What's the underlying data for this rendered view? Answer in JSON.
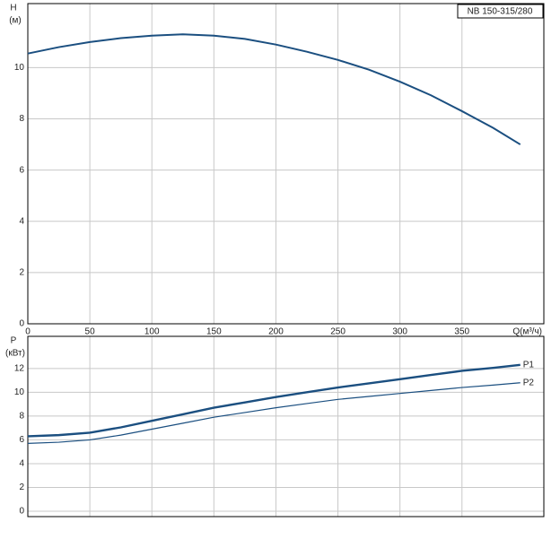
{
  "chart_data": [
    {
      "type": "line",
      "title": "NB 150-315/280",
      "ylabel": "H",
      "yunit": "(м)",
      "xlabel": "Q(м³/ч)",
      "x": [
        0,
        25,
        50,
        75,
        100,
        125,
        150,
        175,
        200,
        225,
        250,
        275,
        300,
        325,
        350,
        375,
        397
      ],
      "series": [
        {
          "name": "H",
          "color": "#1b4f80",
          "values": [
            10.55,
            10.8,
            11.0,
            11.15,
            11.25,
            11.3,
            11.25,
            11.12,
            10.9,
            10.62,
            10.3,
            9.92,
            9.45,
            8.92,
            8.3,
            7.65,
            7.0
          ]
        }
      ],
      "xlim": [
        0,
        416
      ],
      "ylim": [
        0,
        12.5
      ],
      "xticks": [
        0,
        50,
        100,
        150,
        200,
        250,
        300,
        350
      ],
      "yticks": [
        0,
        2,
        4,
        6,
        8,
        10
      ],
      "grid": true
    },
    {
      "type": "line",
      "ylabel": "P",
      "yunit": "(кВт)",
      "x": [
        0,
        25,
        50,
        75,
        100,
        125,
        150,
        175,
        200,
        225,
        250,
        275,
        300,
        325,
        350,
        375,
        397
      ],
      "series": [
        {
          "name": "P1",
          "color": "#1b4f80",
          "width": 2.4,
          "values": [
            6.3,
            6.4,
            6.6,
            7.05,
            7.6,
            8.15,
            8.7,
            9.15,
            9.6,
            10.0,
            10.4,
            10.75,
            11.1,
            11.45,
            11.8,
            12.05,
            12.3
          ]
        },
        {
          "name": "P2",
          "color": "#1b4f80",
          "width": 1.2,
          "values": [
            5.7,
            5.8,
            6.0,
            6.4,
            6.9,
            7.4,
            7.9,
            8.3,
            8.7,
            9.05,
            9.4,
            9.65,
            9.9,
            10.15,
            10.4,
            10.6,
            10.8
          ]
        }
      ],
      "xlim": [
        0,
        416
      ],
      "ylim": [
        -0.45,
        14.7
      ],
      "xticks": [
        0,
        50,
        100,
        150,
        200,
        250,
        300,
        350
      ],
      "yticks": [
        0,
        2,
        4,
        6,
        8,
        10,
        12
      ],
      "grid": true
    }
  ]
}
